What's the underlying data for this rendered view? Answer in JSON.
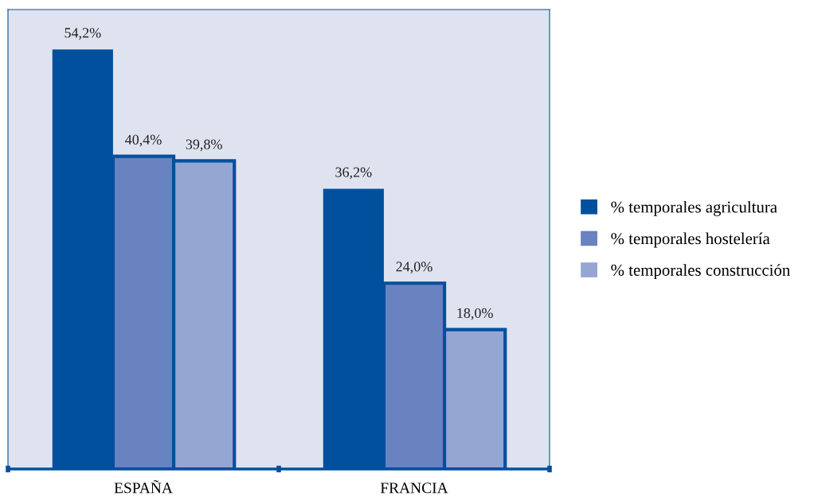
{
  "chart_data": {
    "type": "bar",
    "categories": [
      "ESPAÑA",
      "FRANCIA"
    ],
    "series": [
      {
        "name": "% temporales agricultura",
        "color": "#00509e",
        "values": [
          54.2,
          36.2
        ],
        "value_labels": [
          "54,2%",
          "36,2%"
        ]
      },
      {
        "name": "% temporales hostelería",
        "color": "#6982c0",
        "values": [
          40.4,
          24.0
        ],
        "value_labels": [
          "40,4%",
          "24,0%"
        ]
      },
      {
        "name": "% temporales construcción",
        "color": "#96a6d3",
        "values": [
          39.8,
          18.0
        ],
        "value_labels": [
          "39,8%",
          "18,0%"
        ]
      }
    ],
    "legend": "right",
    "grid": false
  }
}
